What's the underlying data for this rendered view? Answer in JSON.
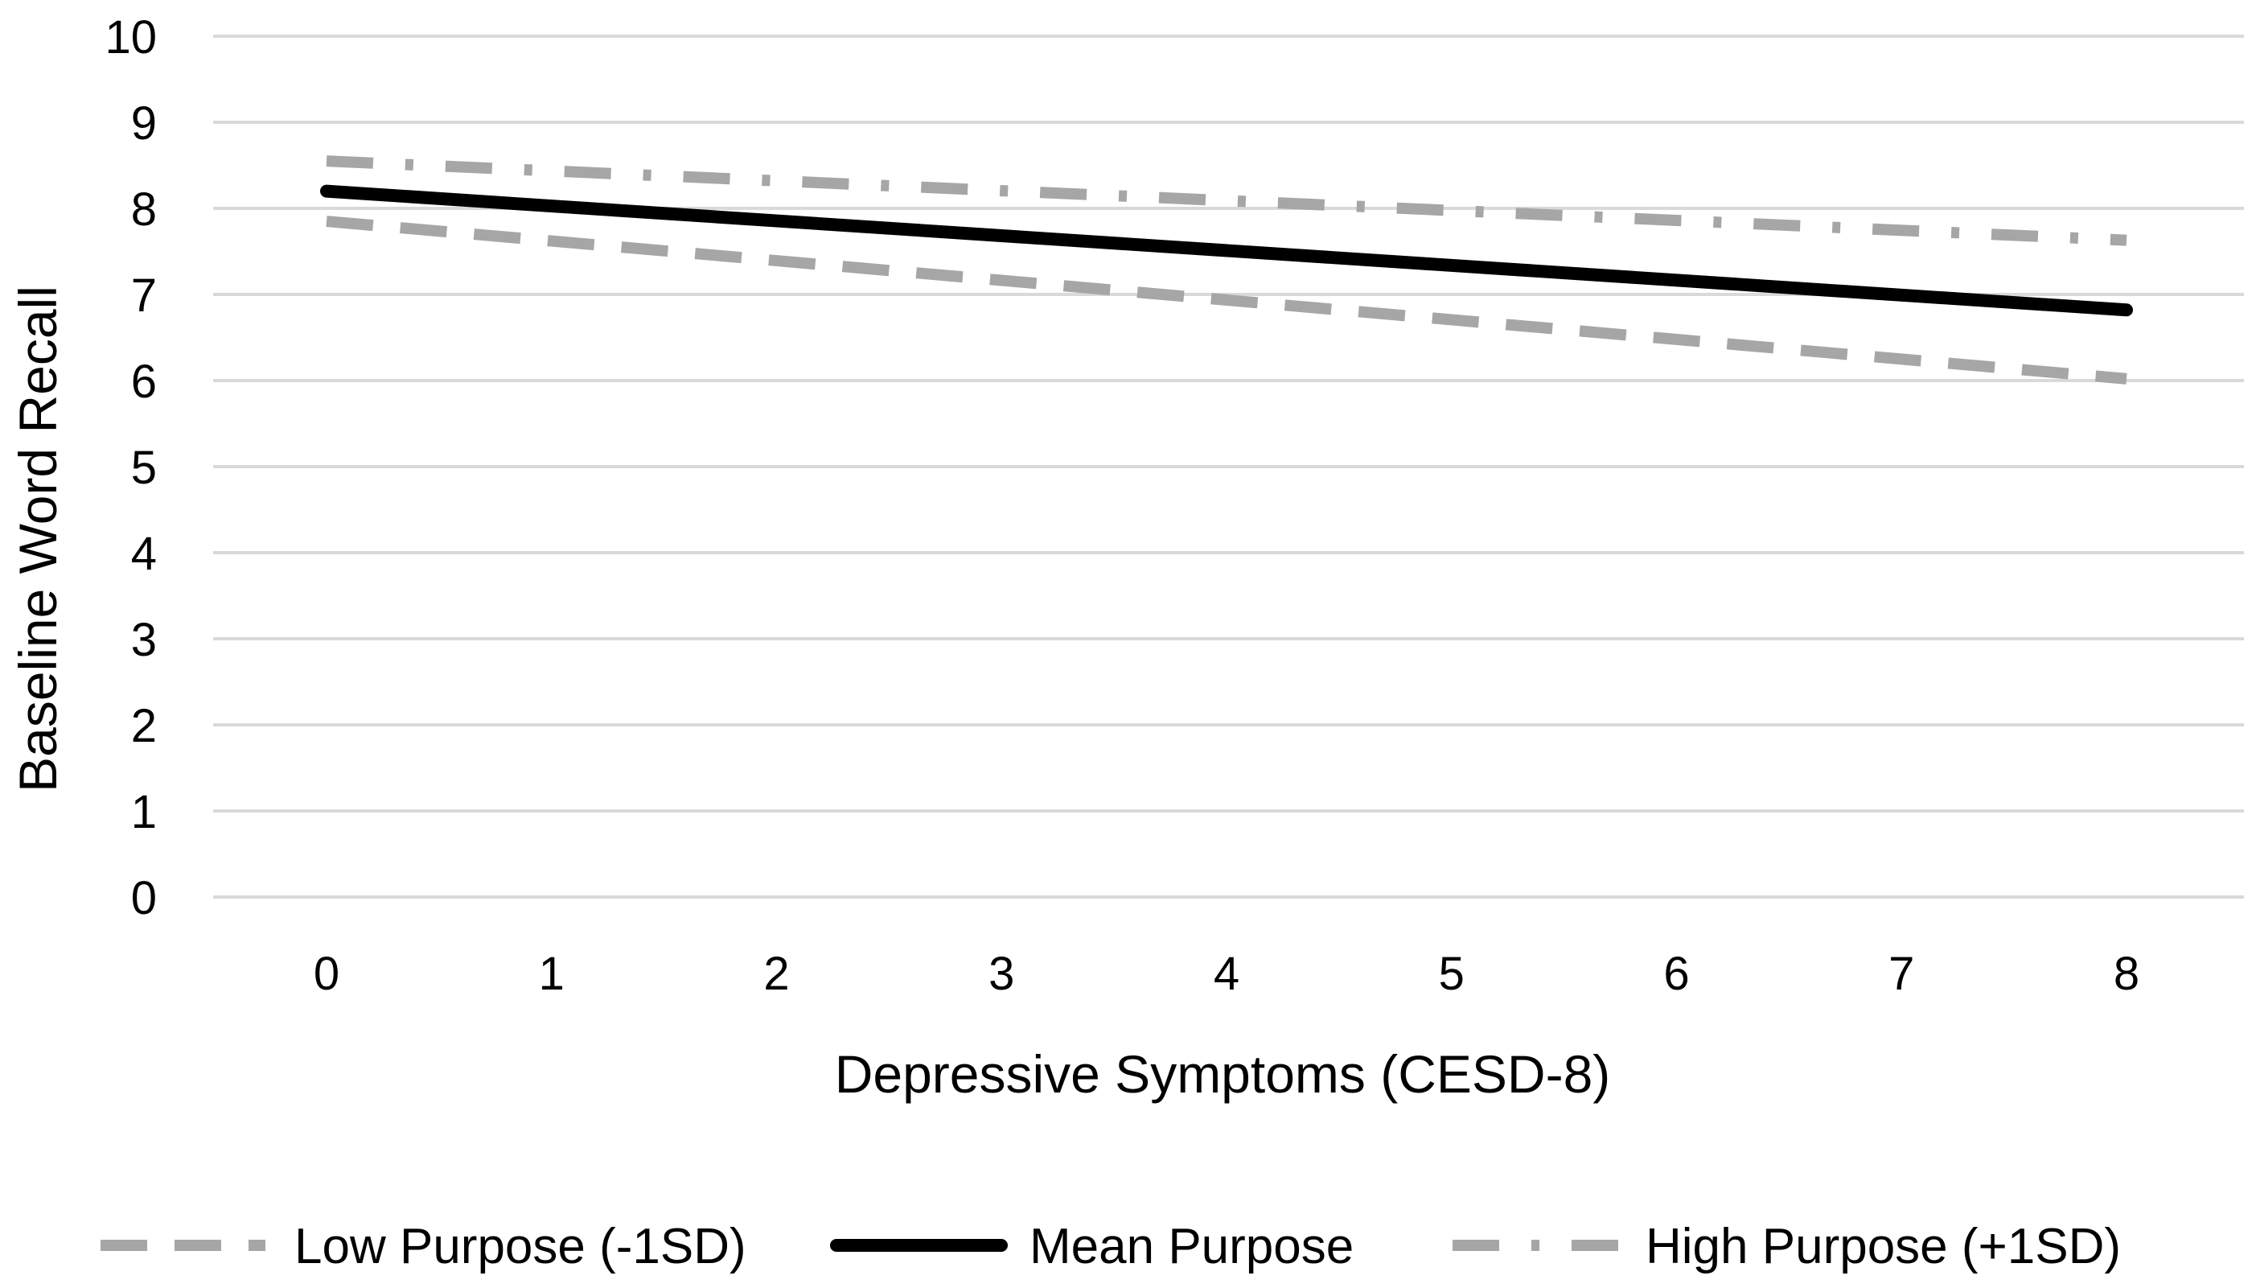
{
  "chart_data": {
    "type": "line",
    "title": "",
    "xlabel": "Depressive Symptoms (CESD-8)",
    "ylabel": "Baseline Word Recall",
    "x": [
      0,
      1,
      2,
      3,
      4,
      5,
      6,
      7,
      8
    ],
    "x_tick_labels": [
      "0",
      "1",
      "2",
      "3",
      "4",
      "5",
      "6",
      "7",
      "8"
    ],
    "y_tick_labels": [
      "0",
      "1",
      "2",
      "3",
      "4",
      "5",
      "6",
      "7",
      "8",
      "9",
      "10"
    ],
    "ylim": [
      0,
      10
    ],
    "grid": true,
    "legend_position": "bottom",
    "series": [
      {
        "name": "Low Purpose (-1SD)",
        "style": "dashed",
        "color": "#a6a6a6",
        "start": 7.85,
        "end": 6.02
      },
      {
        "name": "Mean Purpose",
        "style": "solid",
        "color": "#000000",
        "start": 8.2,
        "end": 6.82
      },
      {
        "name": "High Purpose (+1SD)",
        "style": "dash-dot",
        "color": "#a6a6a6",
        "start": 8.55,
        "end": 7.63
      }
    ]
  }
}
